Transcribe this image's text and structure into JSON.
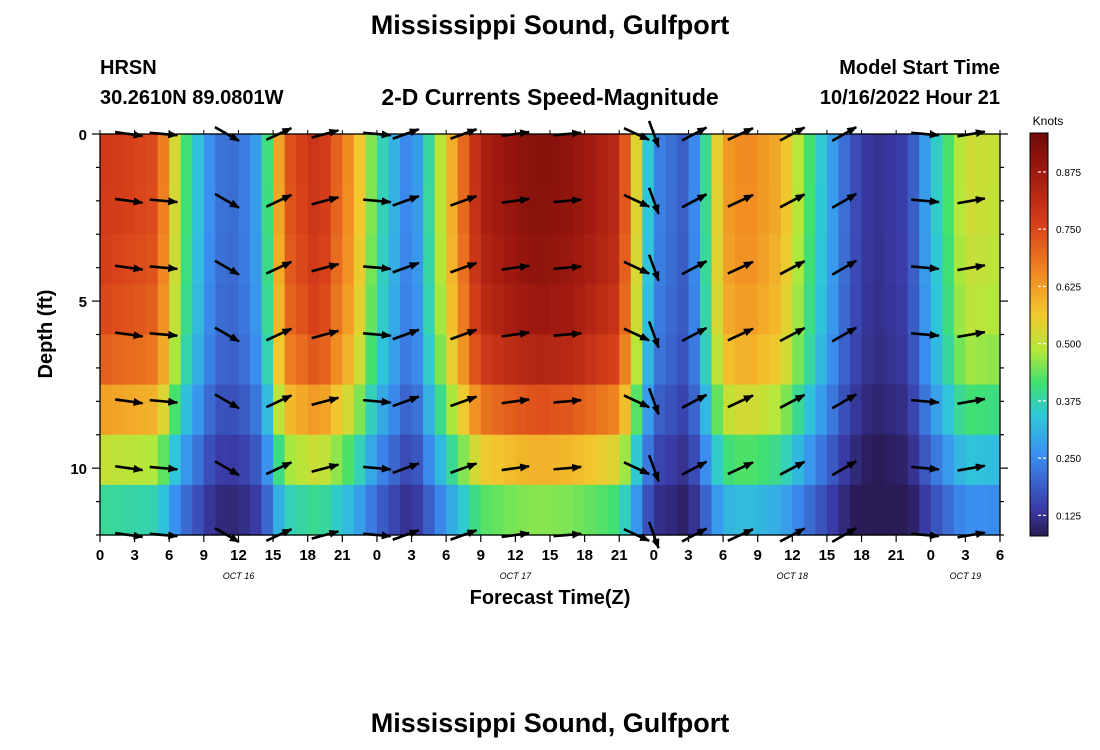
{
  "page": {
    "title": "Mississippi Sound, Gulfport",
    "title_repeat": "Mississippi Sound, Gulfport",
    "station_code": "HRSN",
    "station_coords": "30.2610N  89.0801W",
    "model_start_label": "Model Start Time",
    "model_start_value": "10/16/2022 Hour 21"
  },
  "chart_data": {
    "type": "heatmap",
    "title": "2-D Currents Speed-Magnitude",
    "xlabel": "Forecast Time(Z)",
    "ylabel": "Depth (ft)",
    "colorbar_label": "Knots",
    "colorbar_ticks": [
      "0.875",
      "0.750",
      "0.625",
      "0.500",
      "0.375",
      "0.250",
      "0.125"
    ],
    "colorbar_values": [
      0.875,
      0.75,
      0.625,
      0.5,
      0.375,
      0.25,
      0.125
    ],
    "colorbar_range": [
      0.08,
      0.96
    ],
    "x_range_hours": [
      0,
      78
    ],
    "x_tick_labels": [
      "0",
      "3",
      "6",
      "9",
      "12",
      "15",
      "18",
      "21",
      "0",
      "3",
      "6",
      "9",
      "12",
      "15",
      "18",
      "21",
      "0",
      "3",
      "6",
      "9",
      "12",
      "15",
      "18",
      "21",
      "0",
      "3",
      "6"
    ],
    "date_labels": [
      {
        "text": "OCT 16",
        "hour": 12
      },
      {
        "text": "OCT 17",
        "hour": 36
      },
      {
        "text": "OCT 18",
        "hour": 60
      },
      {
        "text": "OCT 19",
        "hour": 75
      }
    ],
    "y_range_ft": [
      0,
      12
    ],
    "y_tick_labels": [
      "0",
      "5",
      "10"
    ],
    "y_tick_values": [
      0,
      5,
      10
    ],
    "speed_profile": {
      "hours": [
        0,
        5,
        7,
        10,
        12,
        14,
        16,
        19,
        22,
        24,
        27,
        30,
        33,
        36,
        38,
        41,
        45,
        48,
        51,
        52,
        54,
        56,
        59,
        62,
        65,
        67,
        70,
        72,
        75,
        78
      ],
      "surface_knots": [
        0.78,
        0.74,
        0.45,
        0.22,
        0.21,
        0.3,
        0.72,
        0.8,
        0.62,
        0.4,
        0.22,
        0.55,
        0.85,
        0.9,
        0.92,
        0.9,
        0.82,
        0.25,
        0.18,
        0.32,
        0.62,
        0.66,
        0.6,
        0.38,
        0.18,
        0.12,
        0.15,
        0.32,
        0.52,
        0.5
      ],
      "depth_ft": [
        0,
        2,
        4,
        6,
        7.5,
        9,
        10.5,
        12
      ],
      "depth_factor": [
        1,
        1,
        0.98,
        0.95,
        0.88,
        0.72,
        0.58,
        0.42
      ]
    },
    "vector_hours": [
      2.5,
      5.5,
      11,
      15.5,
      19.5,
      24,
      26.5,
      31.5,
      36,
      40.5,
      46.5,
      48,
      51.5,
      55.5,
      60,
      64.5,
      71.5,
      75.5
    ],
    "vector_depths_ft": [
      0,
      2,
      4,
      6,
      8,
      10,
      12
    ],
    "vector_angles_deg": [
      8,
      5,
      30,
      -25,
      -15,
      5,
      -20,
      -20,
      -8,
      -5,
      25,
      70,
      -28,
      -25,
      -28,
      -30,
      5,
      -10
    ],
    "vector_length_hours": 2.4
  }
}
